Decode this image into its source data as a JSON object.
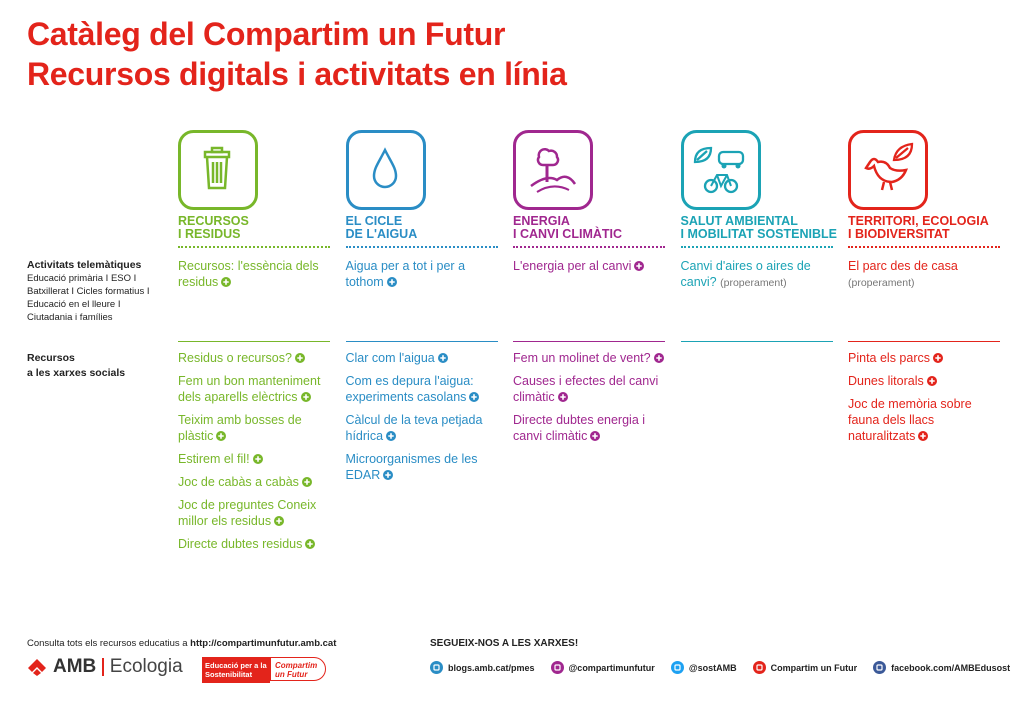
{
  "title": [
    "Catàleg del Compartim un Futur",
    "Recursos digitals i activitats en línia"
  ],
  "row_labels": [
    {
      "title": [
        "Activitats telemàtiques"
      ],
      "lines": [
        "Educació primària I ESO I",
        "Batxillerat I Cicles formatius I",
        "Educació en el lleure I",
        "Ciutadania i famílies"
      ]
    },
    {
      "title": [
        "Recursos",
        "a les xarxes socials"
      ],
      "lines": []
    }
  ],
  "columns": [
    {
      "heading": [
        "RECURSOS",
        "I RESIDUS"
      ],
      "color": "#78b72a",
      "online": [
        {
          "text": "Recursos: l'essència dels residus"
        }
      ],
      "social": [
        "Residus o recursos?",
        "Fem un bon manteniment dels aparells elèctrics",
        "Teixim amb bosses de plàstic",
        "Estirem el fil!",
        "Joc de cabàs a cabàs",
        "Joc de preguntes Coneix millor els residus",
        "Directe dubtes residus"
      ]
    },
    {
      "heading": [
        "EL CICLE",
        "DE L'AIGUA"
      ],
      "color": "#2a8dc5",
      "online": [
        {
          "text": "Aigua per a tot i per a tothom"
        }
      ],
      "social": [
        "Clar com l'aigua",
        "Com es depura l'aigua: experiments casolans",
        "Càlcul de la teva petjada hídrica",
        "Microorganismes de les EDAR"
      ]
    },
    {
      "heading": [
        "ENERGIA",
        "I CANVI CLIMÀTIC"
      ],
      "color": "#a0278f",
      "online": [
        {
          "text": "L'energia per al canvi"
        }
      ],
      "social": [
        "Fem un molinet de vent?",
        "Causes i efectes del canvi climàtic",
        "Directe dubtes energia i canvi climàtic"
      ]
    },
    {
      "heading": [
        "SALUT AMBIENTAL",
        "I MOBILITAT SOSTENIBLE"
      ],
      "color": "#1ba3b5",
      "online": [
        {
          "text": "Canvi d'aires o aires de canvi?",
          "note": "(properament)"
        }
      ],
      "social": []
    },
    {
      "heading": [
        "TERRITORI, ECOLOGIA",
        "I BIODIVERSITAT"
      ],
      "color": "#e3241b",
      "online": [
        {
          "text": "El parc des de casa",
          "note": "(properament)"
        }
      ],
      "social": [
        "Pinta els parcs",
        "Dunes litorals",
        "Joc de memòria sobre fauna dels llacs naturalitzats"
      ]
    }
  ],
  "footer": {
    "consult": "Consulta tots els recursos educatius a",
    "url": "http://compartimunfutur.amb.cat",
    "logo": "AMB",
    "logo_sub": "Ecologia",
    "badge": "Educació per a la Sostenibilitat",
    "badge_brand": "Compartim un Futur",
    "follow": "SEGUEIX-NOS A LES XARXES!",
    "links": [
      {
        "text": "blogs.amb.cat/pmes",
        "color": "#2a8dc5"
      },
      {
        "text": "@compartimunfutur",
        "color": "#a0278f"
      },
      {
        "text": "@sostAMB",
        "color": "#1da1f2"
      },
      {
        "text": "Compartim un Futur",
        "color": "#e3241b"
      },
      {
        "text": "facebook.com/AMBEdusost",
        "color": "#3b5998"
      }
    ]
  }
}
